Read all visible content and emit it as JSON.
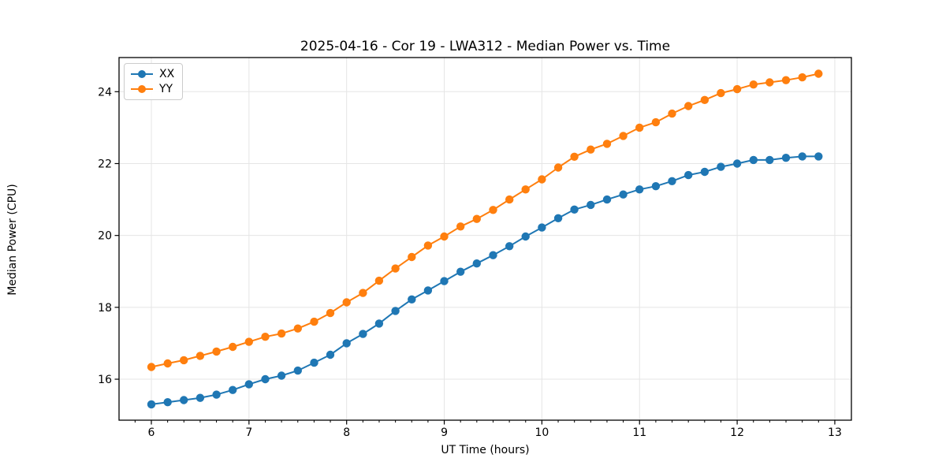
{
  "chart_data": {
    "type": "line",
    "title": "2025-04-16 - Cor 19 - LWA312 - Median Power vs. Time",
    "xlabel": "UT Time (hours)",
    "ylabel": "Median Power (CPU)",
    "xlim": [
      5.669,
      13.17
    ],
    "ylim": [
      14.86,
      24.95
    ],
    "xticks": [
      6,
      7,
      8,
      9,
      10,
      11,
      12,
      13
    ],
    "yticks": [
      16,
      18,
      20,
      22,
      24
    ],
    "x_minor_tick_step": 0.1667,
    "grid": "major",
    "grid_color": "#e5e5e5",
    "legend_position": "upper-left",
    "marker": "circle",
    "x": [
      6,
      6.167,
      6.333,
      6.5,
      6.667,
      6.833,
      7,
      7.167,
      7.333,
      7.5,
      7.667,
      7.833,
      8,
      8.167,
      8.333,
      8.5,
      8.667,
      8.833,
      9,
      9.167,
      9.333,
      9.5,
      9.667,
      9.833,
      10,
      10.167,
      10.333,
      10.5,
      10.667,
      10.833,
      11,
      11.167,
      11.333,
      11.5,
      11.667,
      11.833,
      12,
      12.167,
      12.333,
      12.5,
      12.667,
      12.833
    ],
    "series": [
      {
        "name": "XX",
        "color": "#1f77b4",
        "values": [
          15.3,
          15.36,
          15.42,
          15.48,
          15.57,
          15.7,
          15.86,
          16.0,
          16.1,
          16.24,
          16.46,
          16.68,
          17.0,
          17.26,
          17.55,
          17.9,
          18.22,
          18.47,
          18.73,
          18.99,
          19.22,
          19.45,
          19.7,
          19.97,
          20.22,
          20.48,
          20.72,
          20.85,
          21.0,
          21.14,
          21.28,
          21.37,
          21.51,
          21.68,
          21.77,
          21.91,
          22.0,
          22.1,
          22.1,
          22.16,
          22.2,
          22.2
        ]
      },
      {
        "name": "YY",
        "color": "#ff7f0e",
        "values": [
          16.34,
          16.44,
          16.53,
          16.65,
          16.77,
          16.9,
          17.04,
          17.18,
          17.27,
          17.41,
          17.6,
          17.84,
          18.14,
          18.4,
          18.74,
          19.08,
          19.4,
          19.72,
          19.97,
          20.25,
          20.46,
          20.71,
          21.0,
          21.28,
          21.56,
          21.89,
          22.19,
          22.39,
          22.55,
          22.77,
          23.0,
          23.15,
          23.39,
          23.6,
          23.77,
          23.96,
          24.07,
          24.2,
          24.26,
          24.32,
          24.4,
          24.5
        ]
      }
    ]
  }
}
